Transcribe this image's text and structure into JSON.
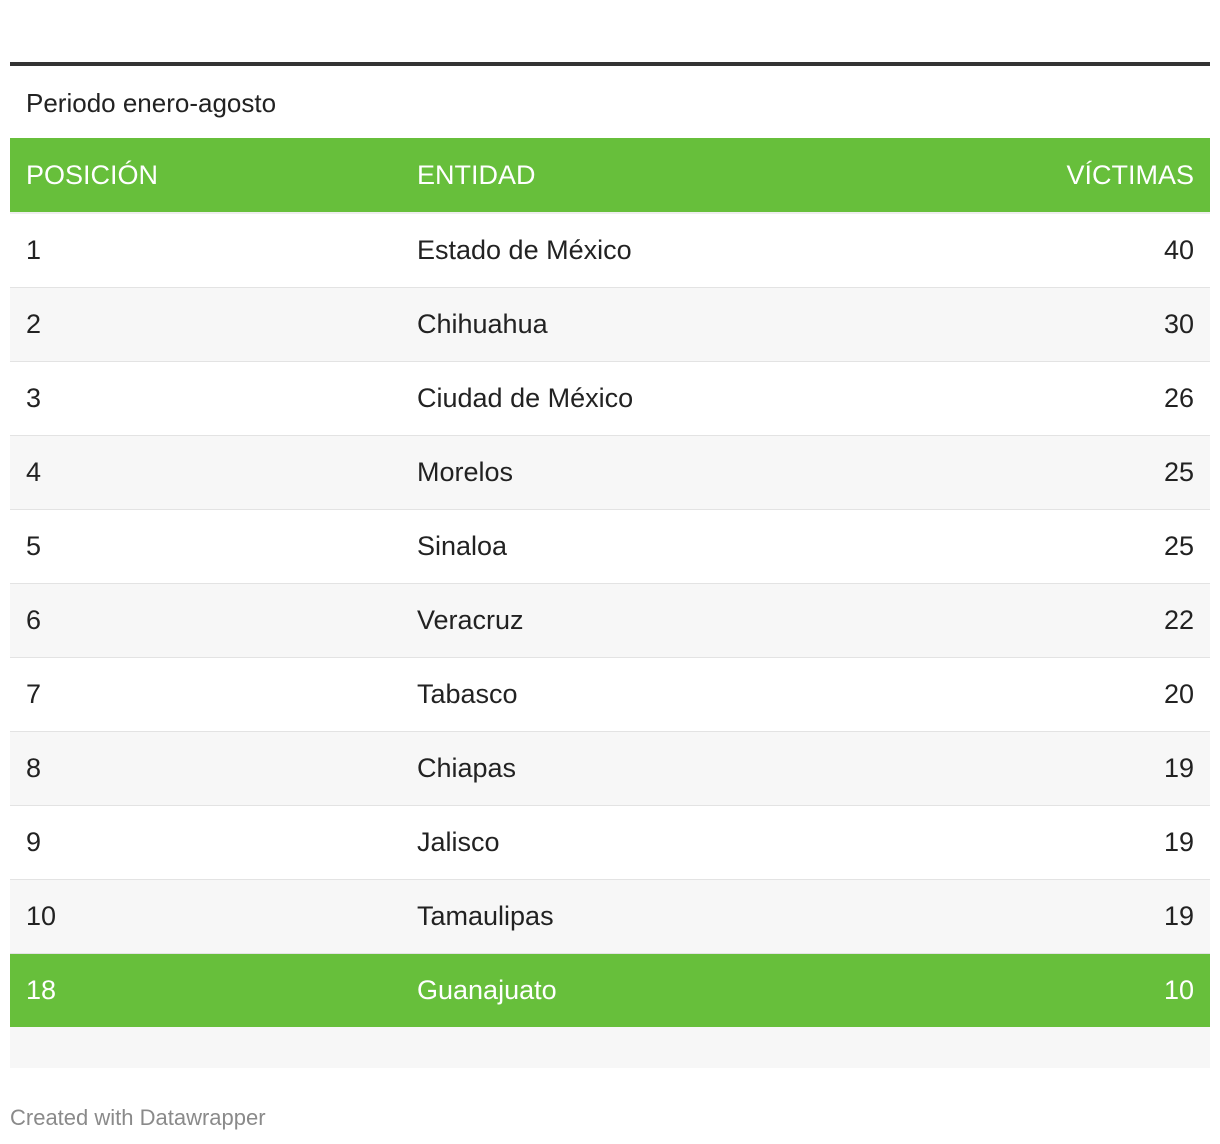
{
  "subtitle": "Periodo enero-agosto",
  "columns": [
    "POSICIÓN",
    "ENTIDAD",
    "VÍCTIMAS"
  ],
  "highlight_color": "#67bf3b",
  "footer": "Created with Datawrapper",
  "chart_data": {
    "type": "table",
    "title": "",
    "subtitle": "Periodo enero-agosto",
    "columns": [
      "POSICIÓN",
      "ENTIDAD",
      "VÍCTIMAS"
    ],
    "rows": [
      {
        "posicion": "1",
        "entidad": "Estado de México",
        "victimas": "40"
      },
      {
        "posicion": "2",
        "entidad": "Chihuahua",
        "victimas": "30"
      },
      {
        "posicion": "3",
        "entidad": "Ciudad de México",
        "victimas": "26"
      },
      {
        "posicion": "4",
        "entidad": "Morelos",
        "victimas": "25"
      },
      {
        "posicion": "5",
        "entidad": "Sinaloa",
        "victimas": "25"
      },
      {
        "posicion": "6",
        "entidad": "Veracruz",
        "victimas": "22"
      },
      {
        "posicion": "7",
        "entidad": "Tabasco",
        "victimas": "20"
      },
      {
        "posicion": "8",
        "entidad": "Chiapas",
        "victimas": "19"
      },
      {
        "posicion": "9",
        "entidad": "Jalisco",
        "victimas": "19"
      },
      {
        "posicion": "10",
        "entidad": "Tamaulipas",
        "victimas": "19"
      },
      {
        "posicion": "18",
        "entidad": "Guanajuato",
        "victimas": "10",
        "highlighted": true
      }
    ]
  }
}
